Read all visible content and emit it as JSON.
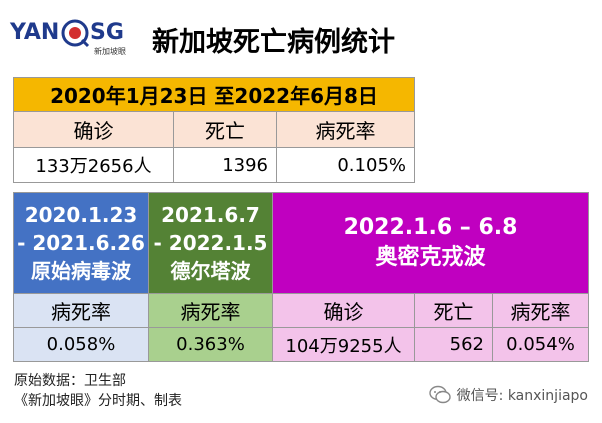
{
  "logo": {
    "left_text": "YAN",
    "right_text": "SG",
    "sub_text": "新加坡眼"
  },
  "title": "新加坡死亡病例统计",
  "overall": {
    "period": "2020年1月23日 至2022年6月8日",
    "headers": [
      "确诊",
      "死亡",
      "病死率"
    ],
    "values": [
      "133万2656人",
      "1396",
      "0.105%"
    ]
  },
  "waves": [
    {
      "line1": "2020.1.23",
      "line2": "- 2021.6.26",
      "name": "原始病毒波",
      "rate_header": "病死率",
      "rate": "0.058%"
    },
    {
      "line1": "2021.6.7",
      "line2": "- 2022.1.5",
      "name": "德尔塔波",
      "rate_header": "病死率",
      "rate": "0.363%"
    }
  ],
  "omicron": {
    "line1": "2022.1.6 – 6.8",
    "name": "奥密克戎波",
    "headers": [
      "确诊",
      "死亡",
      "病死率"
    ],
    "values": [
      "104万9255人",
      "562",
      "0.054%"
    ]
  },
  "footer": {
    "source": "原始数据：卫生部",
    "credit": "《新加坡眼》分时期、制表",
    "wechat": "微信号: kanxinjiapo"
  },
  "colors": {
    "yellow": "#f5b700",
    "peach": "#fbe3d5",
    "blue": "#4472c4",
    "green": "#548235",
    "purple": "#c000c0",
    "light_blue": "#dae3f3",
    "light_green": "#a9d08e",
    "light_purple": "#f3c3ea"
  }
}
